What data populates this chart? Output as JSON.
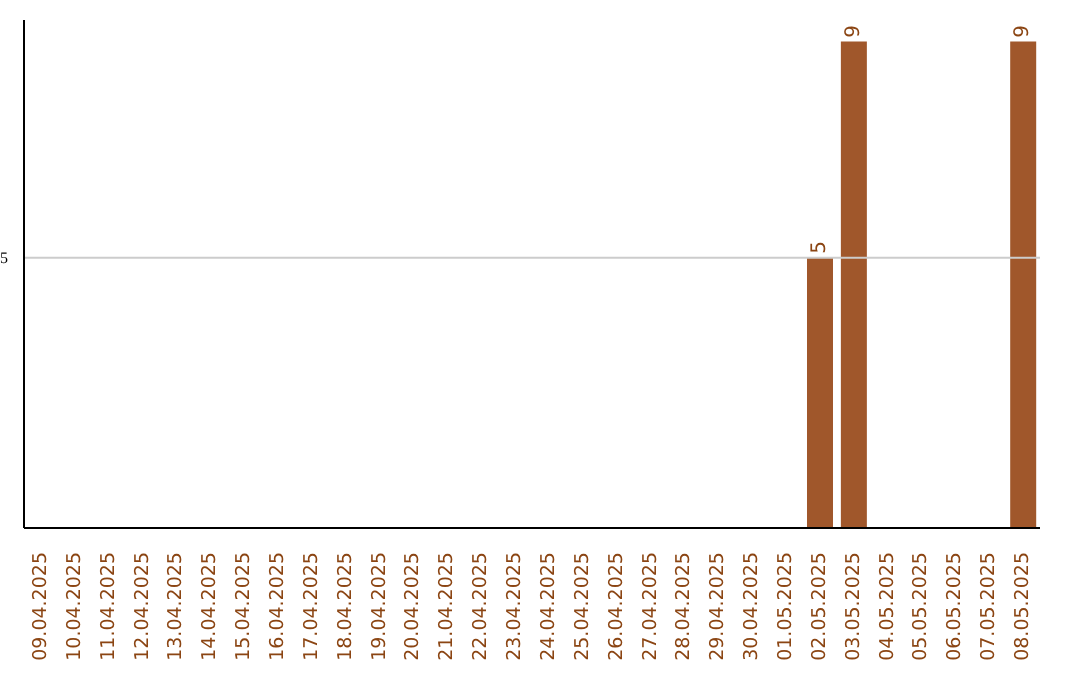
{
  "chart_data": {
    "type": "bar",
    "categories": [
      "09.04.2025",
      "10.04.2025",
      "11.04.2025",
      "12.04.2025",
      "13.04.2025",
      "14.04.2025",
      "15.04.2025",
      "16.04.2025",
      "17.04.2025",
      "18.04.2025",
      "19.04.2025",
      "20.04.2025",
      "21.04.2025",
      "22.04.2025",
      "23.04.2025",
      "24.04.2025",
      "25.04.2025",
      "26.04.2025",
      "27.04.2025",
      "28.04.2025",
      "29.04.2025",
      "30.04.2025",
      "01.05.2025",
      "02.05.2025",
      "03.05.2025",
      "04.05.2025",
      "05.05.2025",
      "06.05.2025",
      "07.05.2025",
      "08.05.2025"
    ],
    "values": [
      null,
      null,
      null,
      null,
      null,
      null,
      null,
      null,
      null,
      null,
      null,
      null,
      null,
      null,
      null,
      null,
      null,
      null,
      null,
      null,
      null,
      null,
      null,
      5,
      9,
      null,
      null,
      null,
      null,
      9
    ],
    "color": "#a0572b",
    "ylim": [
      0,
      9.4
    ],
    "yticks": [
      5
    ],
    "grid": "y",
    "data_labels": true
  }
}
